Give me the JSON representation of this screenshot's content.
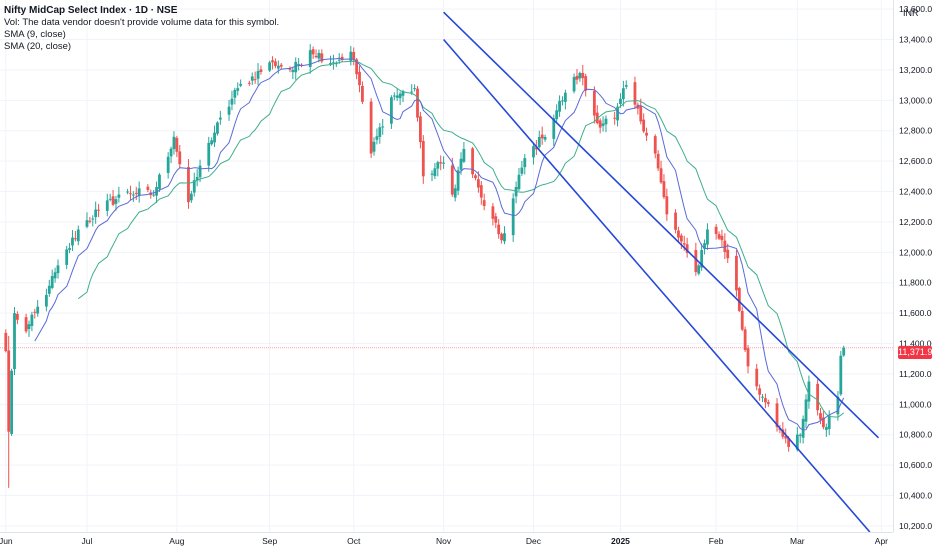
{
  "header": {
    "title": "Nifty MidCap Select Index · 1D · NSE",
    "volume_note": "Vol: The data vendor doesn't provide volume data for this symbol.",
    "sma_fast": "SMA (9, close)",
    "sma_slow": "SMA (20, close)",
    "currency": "INR"
  },
  "last_price_label": "11,371.95",
  "colors": {
    "up": "#26a69a",
    "down": "#ef5350",
    "sma_fast": "#5b6ad8",
    "sma_slow": "#3fae8c",
    "channel": "#2448d8",
    "price_line": "#f6a5ad",
    "badge": "#f23645"
  },
  "chart_data": {
    "type": "candlestick",
    "x_axis_labels": [
      "Jun",
      "Jul",
      "Aug",
      "Sep",
      "Oct",
      "Nov",
      "Dec",
      "2025",
      "Feb",
      "Mar",
      "Apr"
    ],
    "y_axis_labels": [
      "13,600.00",
      "13,400.00",
      "13,200.00",
      "13,000.00",
      "12,800.00",
      "12,600.00",
      "12,400.00",
      "12,200.00",
      "12,000.00",
      "11,800.00",
      "11,600.00",
      "11,400.00",
      "11,200.00",
      "11,000.00",
      "10,800.00",
      "10,600.00",
      "10,400.00",
      "10,200.00"
    ],
    "y_range": [
      10160,
      13660
    ],
    "last_price": 11371.95,
    "series": [
      {
        "name": "SMA (9, close)",
        "kind": "line"
      },
      {
        "name": "SMA (20, close)",
        "kind": "line"
      }
    ],
    "trend_channel": {
      "upper": [
        [
          "2024-11-01",
          13580
        ],
        [
          "2025-03-31",
          10780
        ]
      ],
      "lower": [
        [
          "2024-11-01",
          13400
        ],
        [
          "2025-03-28",
          10160
        ]
      ]
    },
    "anchors": [
      [
        "2024-06-03",
        11350
      ],
      [
        "2024-06-04",
        10820
      ],
      [
        "2024-06-06",
        11600
      ],
      [
        "2024-06-10",
        11480
      ],
      [
        "2024-06-18",
        11780
      ],
      [
        "2024-06-28",
        12150
      ],
      [
        "2024-07-05",
        12280
      ],
      [
        "2024-07-15",
        12400
      ],
      [
        "2024-07-24",
        12380
      ],
      [
        "2024-07-31",
        12760
      ],
      [
        "2024-08-05",
        12330
      ],
      [
        "2024-08-12",
        12720
      ],
      [
        "2024-08-22",
        13080
      ],
      [
        "2024-09-03",
        13250
      ],
      [
        "2024-09-10",
        13200
      ],
      [
        "2024-09-16",
        13330
      ],
      [
        "2024-09-24",
        13250
      ],
      [
        "2024-09-30",
        13320
      ],
      [
        "2024-10-03",
        13100
      ],
      [
        "2024-10-07",
        12650
      ],
      [
        "2024-10-14",
        13020
      ],
      [
        "2024-10-22",
        13080
      ],
      [
        "2024-10-25",
        12500
      ],
      [
        "2024-11-01",
        12590
      ],
      [
        "2024-11-04",
        12380
      ],
      [
        "2024-11-08",
        12680
      ],
      [
        "2024-11-14",
        12360
      ],
      [
        "2024-11-21",
        12080
      ],
      [
        "2024-11-29",
        12620
      ],
      [
        "2024-12-05",
        12750
      ],
      [
        "2024-12-13",
        13050
      ],
      [
        "2024-12-18",
        13180
      ],
      [
        "2024-12-24",
        12850
      ],
      [
        "2024-12-30",
        12880
      ],
      [
        "2025-01-03",
        13100
      ],
      [
        "2025-01-13",
        12650
      ],
      [
        "2025-01-17",
        12250
      ],
      [
        "2025-01-27",
        11870
      ],
      [
        "2025-01-31",
        12150
      ],
      [
        "2025-02-05",
        12080
      ],
      [
        "2025-02-10",
        11750
      ],
      [
        "2025-02-14",
        11250
      ],
      [
        "2025-02-19",
        11050
      ],
      [
        "2025-02-24",
        10850
      ],
      [
        "2025-02-28",
        10720
      ],
      [
        "2025-03-04",
        10800
      ],
      [
        "2025-03-07",
        11150
      ],
      [
        "2025-03-11",
        10900
      ],
      [
        "2025-03-13",
        10850
      ],
      [
        "2025-03-17",
        11050
      ],
      [
        "2025-03-18",
        11320
      ],
      [
        "2025-03-19",
        11372
      ]
    ]
  }
}
